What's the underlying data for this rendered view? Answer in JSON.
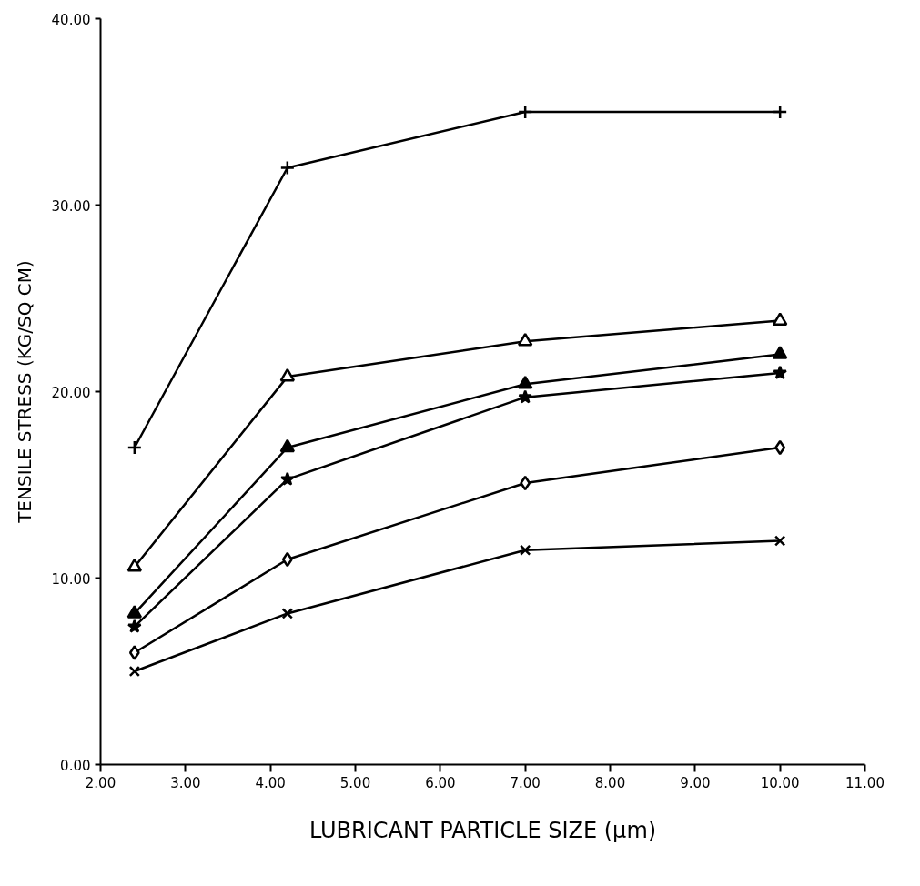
{
  "chart_data": {
    "type": "line",
    "xlabel": "LUBRICANT PARTICLE SIZE (μm)",
    "ylabel": "TENSILE STRESS (KG/SQ CM)",
    "x": [
      2.4,
      4.2,
      7.0,
      10.0
    ],
    "series": [
      {
        "color": "#000000",
        "marker": "cross",
        "values": [
          17.0,
          32.0,
          35.0,
          35.0
        ]
      },
      {
        "color": "#000000",
        "marker": "triangle",
        "values": [
          10.6,
          20.8,
          22.7,
          23.8
        ]
      },
      {
        "color": "#000000",
        "marker": "triangle",
        "values": [
          8.1,
          17.0,
          20.4,
          22.0
        ]
      },
      {
        "color": "#000000",
        "marker": "star",
        "values": [
          7.4,
          15.3,
          19.7,
          21.0
        ]
      },
      {
        "color": "#000000",
        "marker": "diamond",
        "values": [
          6.0,
          11.0,
          15.1,
          17.0
        ]
      },
      {
        "color": "#000000",
        "marker": "x",
        "values": [
          5.0,
          8.1,
          11.5,
          12.0
        ]
      }
    ],
    "xlim": [
      2,
      11
    ],
    "ylim": [
      0,
      40
    ],
    "xticks": [
      {
        "value": 2,
        "label": "2.00"
      },
      {
        "value": 3,
        "label": "3.00"
      },
      {
        "value": 4,
        "label": "4.00"
      },
      {
        "value": 5,
        "label": "5.00"
      },
      {
        "value": 6,
        "label": "6.00"
      },
      {
        "value": 7,
        "label": "7.00"
      },
      {
        "value": 8,
        "label": "8.00"
      },
      {
        "value": 9,
        "label": "9.00"
      },
      {
        "value": 10,
        "label": "10.00"
      },
      {
        "value": 11,
        "label": "11.00"
      }
    ],
    "yticks": [
      {
        "value": 0,
        "label": "0.00"
      },
      {
        "value": 10,
        "label": "10.00"
      },
      {
        "value": 20,
        "label": "20.00"
      },
      {
        "value": 30,
        "label": "30.00"
      },
      {
        "value": 40,
        "label": "40.00"
      }
    ],
    "line_style": "solid"
  }
}
